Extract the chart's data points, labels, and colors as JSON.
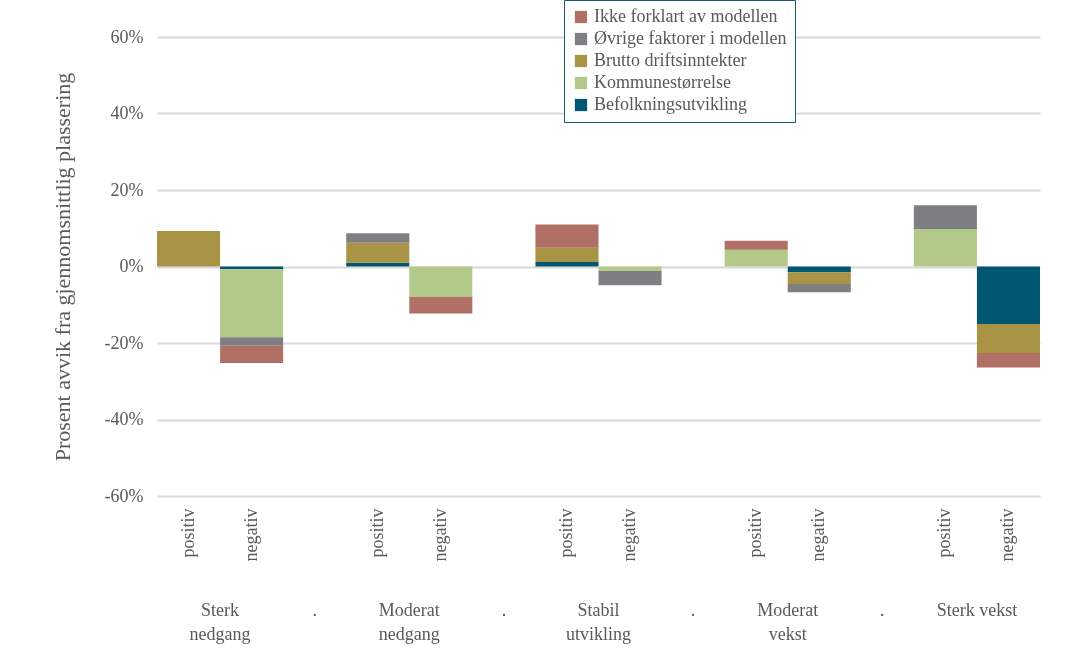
{
  "chart_data": {
    "type": "bar",
    "stacked": true,
    "ylabel": "Prosent avvik fra gjennomsnittlig plassering",
    "categories": [
      "positiv",
      "negativ",
      null,
      "positiv",
      "negativ",
      null,
      "positiv",
      "negativ",
      null,
      "positiv",
      "negativ",
      null,
      "positiv",
      "negativ"
    ],
    "annotations": [
      "Sterk nedgang",
      ".",
      "Moderat nedgang",
      ".",
      "Stabil utvikling",
      ".",
      "Moderat vekst",
      ".",
      "Sterk vekst"
    ],
    "series": [
      {
        "name": "Befolkningsutvikling",
        "color": "#00566f",
        "values": [
          0,
          -0.7,
          null,
          1.0,
          0,
          null,
          1.2,
          0,
          null,
          0,
          -1.5,
          null,
          0,
          -15.0
        ]
      },
      {
        "name": "Kommunestørrelse",
        "color": "#b2c98a",
        "values": [
          0,
          -17.8,
          null,
          0,
          -7.9,
          null,
          0,
          -1.2,
          null,
          4.4,
          0,
          null,
          9.8,
          0
        ]
      },
      {
        "name": "Brutto driftsinntekter",
        "color": "#a89444",
        "values": [
          9.3,
          0,
          null,
          5.2,
          0,
          null,
          3.7,
          0,
          null,
          0,
          -3.1,
          null,
          0,
          -7.6
        ]
      },
      {
        "name": "Øvrige faktorer i modellen",
        "color": "#7f7e83",
        "values": [
          0,
          -2.2,
          null,
          2.5,
          0,
          null,
          0,
          -3.7,
          null,
          0,
          -2.1,
          null,
          6.2,
          0
        ]
      },
      {
        "name": "Ikke forklart av modellen",
        "color": "#b07066",
        "values": [
          0,
          -4.5,
          null,
          0,
          -4.4,
          null,
          6.1,
          0,
          null,
          2.3,
          0,
          null,
          0,
          -3.8
        ]
      }
    ],
    "ylim": [
      -60,
      60
    ],
    "yticks": [
      {
        "value": -60,
        "label": "-60%"
      },
      {
        "value": -40,
        "label": "-40%"
      },
      {
        "value": -20,
        "label": "-20%"
      },
      {
        "value": 0,
        "label": "0%"
      },
      {
        "value": 20,
        "label": "20%"
      },
      {
        "value": 40,
        "label": "40%"
      },
      {
        "value": 60,
        "label": "60%"
      }
    ],
    "grid": "y",
    "legend": "top right"
  }
}
